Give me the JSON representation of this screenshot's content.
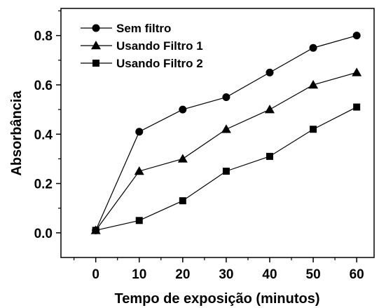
{
  "chart_data": {
    "type": "line",
    "xlabel": "Tempo de exposição (minutos)",
    "ylabel": "Absorbância",
    "x": [
      0,
      10,
      20,
      30,
      40,
      50,
      60
    ],
    "xticks": [
      "0",
      "10",
      "20",
      "30",
      "40",
      "50",
      "60"
    ],
    "yticks": [
      "0.0",
      "0.2",
      "0.4",
      "0.6",
      "0.8"
    ],
    "xlim": [
      -8,
      64
    ],
    "ylim": [
      -0.1,
      0.91
    ],
    "grid": false,
    "legend_position": "top-left",
    "series": [
      {
        "name": "Sem filtro",
        "marker": "circle",
        "values": [
          0.01,
          0.41,
          0.5,
          0.55,
          0.65,
          0.75,
          0.8
        ]
      },
      {
        "name": "Usando Filtro 1",
        "marker": "triangle",
        "values": [
          0.01,
          0.25,
          0.3,
          0.42,
          0.5,
          0.6,
          0.65
        ]
      },
      {
        "name": "Usando Filtro 2",
        "marker": "square",
        "values": [
          0.01,
          0.05,
          0.13,
          0.25,
          0.31,
          0.42,
          0.51
        ]
      }
    ]
  }
}
